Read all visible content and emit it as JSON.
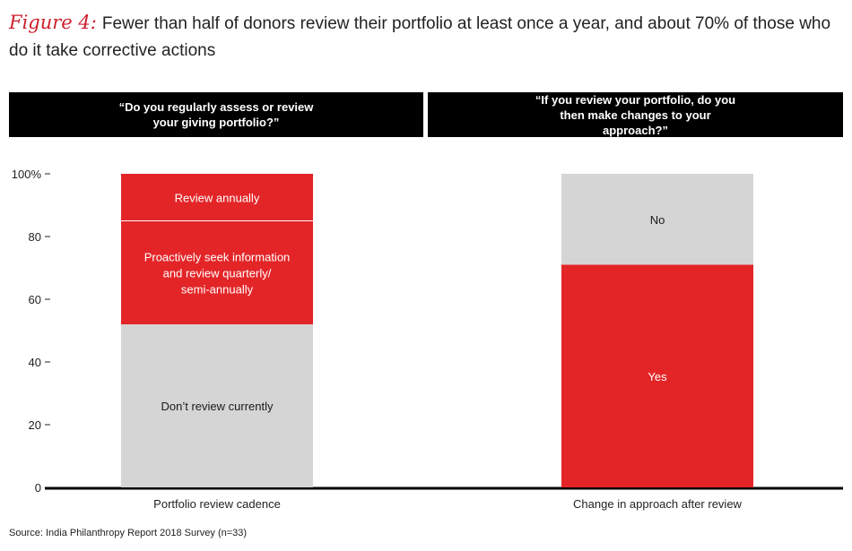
{
  "figure": {
    "label": "Figure 4:",
    "title": "Fewer than half of donors review their portfolio at least once a year, and about 70% of those who do it take corrective actions"
  },
  "questions": {
    "left": "“Do you regularly assess or review your giving portfolio?”",
    "right": "“If you review your portfolio, do you then make changes to your approach?”"
  },
  "source": "Source: India Philanthropy Report 2018 Survey (n=33)",
  "colors": {
    "red": "#e32528",
    "grey": "#d5d5d5",
    "black": "#000000"
  },
  "chart_data": {
    "type": "bar",
    "stacked": true,
    "ylim": [
      0,
      100
    ],
    "yticks": [
      {
        "value": 0,
        "label": "0"
      },
      {
        "value": 20,
        "label": "20"
      },
      {
        "value": 40,
        "label": "40"
      },
      {
        "value": 60,
        "label": "60"
      },
      {
        "value": 80,
        "label": "80"
      },
      {
        "value": 100,
        "label": "100%"
      }
    ],
    "bars": [
      {
        "category": "Portfolio review cadence",
        "segments": [
          {
            "name": "Don’t review currently",
            "value": 52,
            "color": "#d5d5d5",
            "text_color": "#1a1a1a",
            "lines": [
              "Don’t review currently"
            ]
          },
          {
            "name": "Proactively seek information and review quarterly/ semi-annually",
            "value": 33,
            "color": "#e32528",
            "text_color": "#ffffff",
            "lines": [
              "Proactively seek information",
              "and review quarterly/",
              "semi-annually"
            ]
          },
          {
            "name": "Review annually",
            "value": 15,
            "color": "#e32528",
            "text_color": "#ffffff",
            "lines": [
              "Review annually"
            ]
          }
        ]
      },
      {
        "category": "Change in approach after review",
        "segments": [
          {
            "name": "Yes",
            "value": 71,
            "color": "#e32528",
            "text_color": "#ffffff",
            "lines": [
              "Yes"
            ]
          },
          {
            "name": "No",
            "value": 29,
            "color": "#d5d5d5",
            "text_color": "#1a1a1a",
            "lines": [
              "No"
            ]
          }
        ]
      }
    ]
  }
}
